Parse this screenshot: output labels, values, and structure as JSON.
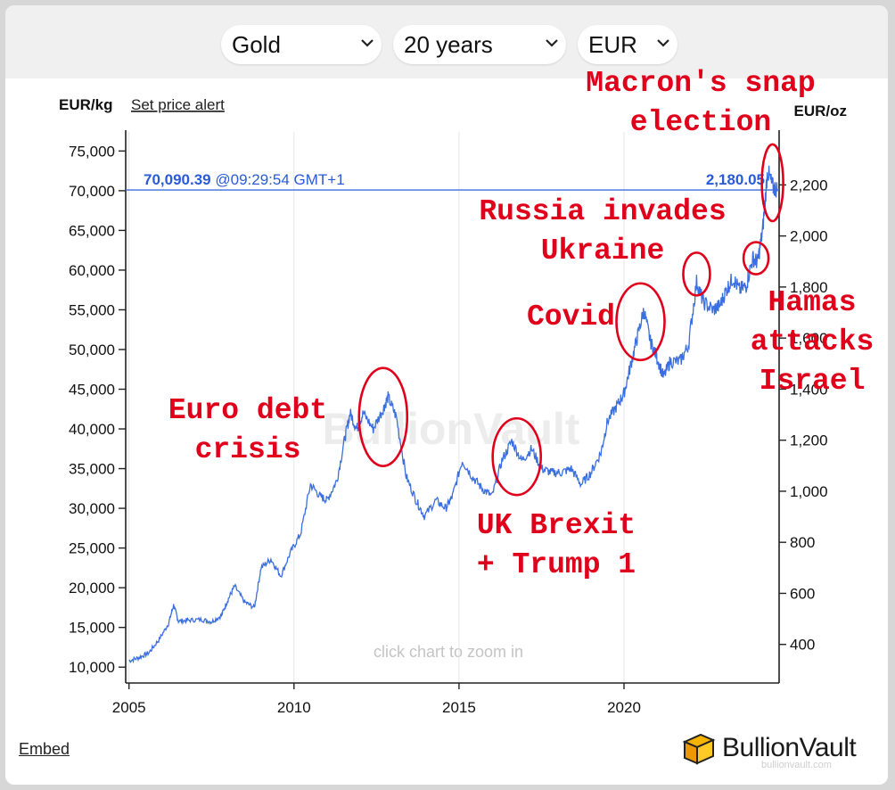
{
  "controls": {
    "metal": "Gold",
    "period": "20 years",
    "currency": "EUR"
  },
  "links": {
    "set_price_alert": "Set price alert",
    "embed": "Embed"
  },
  "brand": {
    "name": "BullionVault",
    "watermark": "BullionVault",
    "small_watermark": "bullionvault.com"
  },
  "hints": {
    "zoom": "click chart to zoom in"
  },
  "colors": {
    "series": "#3b6fe0",
    "annotation": "#e0001b",
    "price_text": "#2a5bd7"
  },
  "chart_data": {
    "type": "line",
    "title": "",
    "left_axis": {
      "unit": "EUR/kg",
      "range": [
        8000,
        76500
      ],
      "ticks": [
        "10,000",
        "15,000",
        "20,000",
        "25,000",
        "30,000",
        "35,000",
        "40,000",
        "45,000",
        "50,000",
        "55,000",
        "60,000",
        "65,000",
        "70,000",
        "75,000"
      ]
    },
    "right_axis": {
      "unit": "EUR/oz",
      "ticks": [
        "400",
        "600",
        "800",
        "1,000",
        "1,200",
        "1,400",
        "1,600",
        "1,800",
        "2,000",
        "2,200"
      ]
    },
    "x_axis": {
      "range": [
        2004.9,
        2024.7
      ],
      "ticks": [
        "2005",
        "2010",
        "2015",
        "2020"
      ]
    },
    "current": {
      "price_kg": "70,090.39",
      "time": "@09:29:54 GMT+1",
      "price_oz": "2,180.05",
      "value_kg": 70090.39
    },
    "series": [
      {
        "points": [
          [
            2005.0,
            10800
          ],
          [
            2005.3,
            11200
          ],
          [
            2005.6,
            11800
          ],
          [
            2005.9,
            13400
          ],
          [
            2006.2,
            15500
          ],
          [
            2006.35,
            17800
          ],
          [
            2006.5,
            15800
          ],
          [
            2006.8,
            15900
          ],
          [
            2007.2,
            16000
          ],
          [
            2007.5,
            15700
          ],
          [
            2007.8,
            16500
          ],
          [
            2008.0,
            18500
          ],
          [
            2008.2,
            20200
          ],
          [
            2008.5,
            18200
          ],
          [
            2008.8,
            17500
          ],
          [
            2009.0,
            22500
          ],
          [
            2009.3,
            23600
          ],
          [
            2009.6,
            21500
          ],
          [
            2009.9,
            24500
          ],
          [
            2010.2,
            26800
          ],
          [
            2010.5,
            33000
          ],
          [
            2010.8,
            31500
          ],
          [
            2011.0,
            31000
          ],
          [
            2011.3,
            33500
          ],
          [
            2011.55,
            39000
          ],
          [
            2011.7,
            42000
          ],
          [
            2011.9,
            40000
          ],
          [
            2012.1,
            42000
          ],
          [
            2012.4,
            40000
          ],
          [
            2012.7,
            42500
          ],
          [
            2012.85,
            44000
          ],
          [
            2013.1,
            41500
          ],
          [
            2013.4,
            34000
          ],
          [
            2013.7,
            31000
          ],
          [
            2013.95,
            29000
          ],
          [
            2014.3,
            31000
          ],
          [
            2014.6,
            30000
          ],
          [
            2014.8,
            31500
          ],
          [
            2015.1,
            36000
          ],
          [
            2015.4,
            34000
          ],
          [
            2015.7,
            32500
          ],
          [
            2016.0,
            31500
          ],
          [
            2016.3,
            36000
          ],
          [
            2016.6,
            38500
          ],
          [
            2016.9,
            36000
          ],
          [
            2017.2,
            37500
          ],
          [
            2017.5,
            35000
          ],
          [
            2017.8,
            34500
          ],
          [
            2018.1,
            34500
          ],
          [
            2018.4,
            35000
          ],
          [
            2018.7,
            33000
          ],
          [
            2019.0,
            34500
          ],
          [
            2019.3,
            37000
          ],
          [
            2019.5,
            41000
          ],
          [
            2019.8,
            43000
          ],
          [
            2020.0,
            44500
          ],
          [
            2020.2,
            48000
          ],
          [
            2020.4,
            51500
          ],
          [
            2020.6,
            55000
          ],
          [
            2020.8,
            51000
          ],
          [
            2021.0,
            49000
          ],
          [
            2021.2,
            46500
          ],
          [
            2021.4,
            48500
          ],
          [
            2021.7,
            48500
          ],
          [
            2021.95,
            50500
          ],
          [
            2022.2,
            58500
          ],
          [
            2022.4,
            56000
          ],
          [
            2022.7,
            55000
          ],
          [
            2022.9,
            55500
          ],
          [
            2023.1,
            57500
          ],
          [
            2023.3,
            59000
          ],
          [
            2023.5,
            57500
          ],
          [
            2023.7,
            58000
          ],
          [
            2023.9,
            61500
          ],
          [
            2024.05,
            61000
          ],
          [
            2024.2,
            65000
          ],
          [
            2024.35,
            72500
          ],
          [
            2024.5,
            70500
          ],
          [
            2024.65,
            70090
          ]
        ]
      }
    ],
    "annotations": [
      {
        "label_lines": [
          "Euro debt",
          "crisis"
        ],
        "x": 2012.7,
        "y": 41500
      },
      {
        "label_lines": [
          "UK Brexit",
          "+ Trump 1"
        ],
        "x": 2016.75,
        "y": 36500
      },
      {
        "label_lines": [
          "Covid"
        ],
        "x": 2020.5,
        "y": 53500
      },
      {
        "label_lines": [
          "Russia invades",
          "Ukraine"
        ],
        "x": 2022.2,
        "y": 59500
      },
      {
        "label_lines": [
          "Hamas",
          "attacks",
          "Israel"
        ],
        "x": 2024.0,
        "y": 61500
      },
      {
        "label_lines": [
          "Macron's snap",
          "election"
        ],
        "x": 2024.5,
        "y": 71000
      }
    ]
  }
}
